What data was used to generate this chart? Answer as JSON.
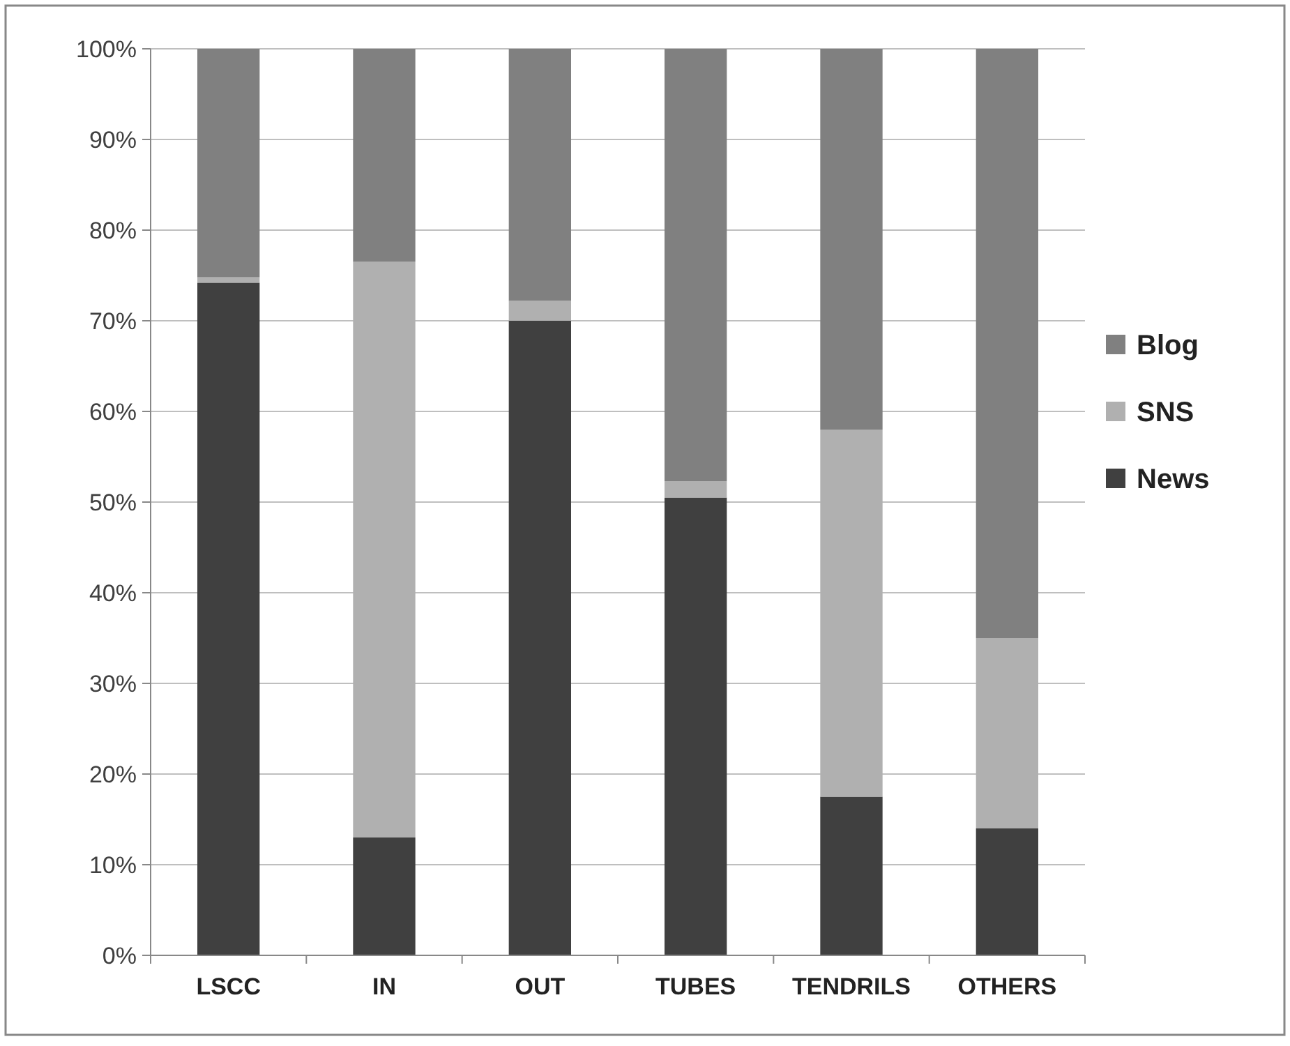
{
  "chart_data": {
    "type": "bar",
    "stacked": true,
    "categories": [
      "LSCC",
      "IN",
      "OUT",
      "TUBES",
      "TENDRILS",
      "OTHERS"
    ],
    "series": [
      {
        "name": "News",
        "color": "#404040",
        "values": [
          74.2,
          13,
          70,
          50.5,
          17.5,
          14
        ]
      },
      {
        "name": "SNS",
        "color": "#b0b0b0",
        "values": [
          0.6,
          63.5,
          2.2,
          1.8,
          40.5,
          21
        ]
      },
      {
        "name": "Blog",
        "color": "#808080",
        "values": [
          25.2,
          23.5,
          27.8,
          47.7,
          42,
          65
        ]
      }
    ],
    "ylim": [
      0,
      100
    ],
    "yticks": [
      {
        "value": 0,
        "label": "0%"
      },
      {
        "value": 10,
        "label": "10%"
      },
      {
        "value": 20,
        "label": "20%"
      },
      {
        "value": 30,
        "label": "30%"
      },
      {
        "value": 40,
        "label": "40%"
      },
      {
        "value": 50,
        "label": "50%"
      },
      {
        "value": 60,
        "label": "60%"
      },
      {
        "value": 70,
        "label": "70%"
      },
      {
        "value": 80,
        "label": "80%"
      },
      {
        "value": 90,
        "label": "90%"
      },
      {
        "value": 100,
        "label": "100%"
      }
    ],
    "grid": "y",
    "legend": "right"
  }
}
